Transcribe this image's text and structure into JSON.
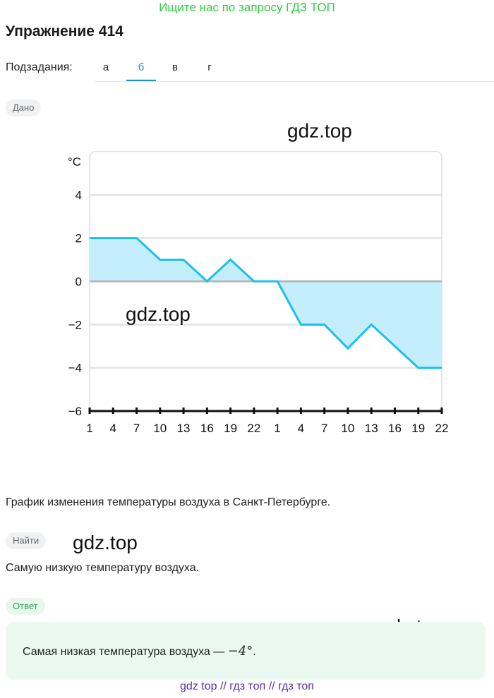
{
  "banner": "Ищите нас по запросу ГДЗ ТОП",
  "title": "Упражнение 414",
  "subtasks": {
    "label": "Подзадания:",
    "tabs": [
      "а",
      "б",
      "в",
      "г"
    ],
    "active": "б"
  },
  "given_label": "Дано",
  "watermarks": [
    "gdz.top",
    "gdz.top",
    "gdz.top",
    "gdz.top"
  ],
  "chart_data": {
    "type": "area",
    "ylabel": "°C",
    "yticks": [
      4,
      2,
      0,
      -2,
      -4,
      -6
    ],
    "ytick_labels": [
      "4",
      "2",
      "0",
      "−2",
      "−4",
      "−6"
    ],
    "ylim": [
      -6,
      6
    ],
    "xticks": [
      "1",
      "4",
      "7",
      "10",
      "13",
      "16",
      "19",
      "22",
      "1",
      "4",
      "7",
      "10",
      "13",
      "16",
      "19",
      "22"
    ],
    "values": [
      2,
      2,
      2,
      1,
      1,
      0,
      1,
      0,
      0,
      -2,
      -2,
      -3.1,
      -2,
      -3,
      -4,
      -4
    ],
    "grid": true,
    "colors": {
      "line": "#1bbfef",
      "fill": "#c4eefb",
      "grid": "#e4e6e8",
      "zero": "#b4b8bc",
      "axis": "#111111"
    }
  },
  "caption": "График изменения температуры воздуха в Санкт-Петербурге.",
  "find_label": "Найти",
  "find_text": "Самую низкую температуру воздуха.",
  "answer_label": "Ответ",
  "answer": {
    "text": "Самая низкая температура воздуха — ",
    "value": "−4°",
    "end": "."
  },
  "footer": "gdz top  //  гдз топ  //  гдз топ"
}
